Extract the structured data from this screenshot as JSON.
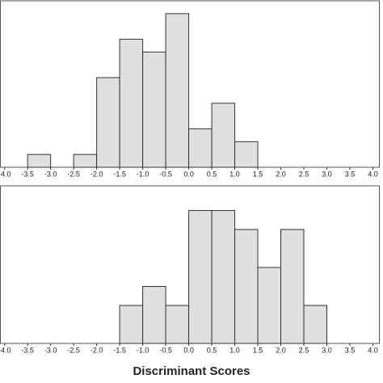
{
  "chart_data": [
    {
      "type": "histogram",
      "bins": [
        -3.5,
        -3.0,
        -2.5,
        -2.0,
        -1.5,
        -1.0,
        -0.5,
        0.0,
        0.5,
        1.0,
        1.5
      ],
      "counts": [
        1,
        0,
        1,
        7,
        10,
        9,
        12,
        3,
        5,
        2
      ],
      "color": "#e0e0e0",
      "xlim": [
        -4.1,
        4.15
      ],
      "ylim": [
        0,
        13
      ],
      "xticks": [
        {
          "value": -4,
          "label": "-4.0"
        },
        {
          "value": -3.5,
          "label": "-3.5"
        },
        {
          "value": -3,
          "label": "-3.0"
        },
        {
          "value": -2.5,
          "label": "-2.5"
        },
        {
          "value": -2,
          "label": "-2.0"
        },
        {
          "value": -1.5,
          "label": "-1.5"
        },
        {
          "value": -1,
          "label": "-1.0"
        },
        {
          "value": -0.5,
          "label": "-0.5"
        },
        {
          "value": 0,
          "label": "0.0"
        },
        {
          "value": 0.5,
          "label": "0.5"
        },
        {
          "value": 1,
          "label": "1.0"
        },
        {
          "value": 1.5,
          "label": "1.5"
        },
        {
          "value": 2,
          "label": "2.0"
        },
        {
          "value": 2.5,
          "label": "2.5"
        },
        {
          "value": 3,
          "label": "3.0"
        },
        {
          "value": 3.5,
          "label": "3.5"
        },
        {
          "value": 4,
          "label": "4.0"
        }
      ]
    },
    {
      "type": "histogram",
      "bins": [
        -1.5,
        -1.0,
        -0.5,
        0.0,
        0.5,
        1.0,
        1.5,
        2.0,
        2.5,
        3.0
      ],
      "counts": [
        2,
        3,
        2,
        7,
        7,
        6,
        4,
        6,
        2
      ],
      "color": "#e0e0e0",
      "xlim": [
        -4.1,
        4.15
      ],
      "ylim": [
        0,
        8.3
      ],
      "xlabel": "Discriminant Scores",
      "xticks": [
        {
          "value": -4,
          "label": "-4.0"
        },
        {
          "value": -3.5,
          "label": "-3.5"
        },
        {
          "value": -3,
          "label": "-3.0"
        },
        {
          "value": -2.5,
          "label": "-2.5"
        },
        {
          "value": -2,
          "label": "-2.0"
        },
        {
          "value": -1.5,
          "label": "-1.5"
        },
        {
          "value": -1,
          "label": "-1.0"
        },
        {
          "value": -0.5,
          "label": "-0.5"
        },
        {
          "value": 0,
          "label": "0.0"
        },
        {
          "value": 0.5,
          "label": "0.5"
        },
        {
          "value": 1,
          "label": "1.0"
        },
        {
          "value": 1.5,
          "label": "1.5"
        },
        {
          "value": 2,
          "label": "2.0"
        },
        {
          "value": 2.5,
          "label": "2.5"
        },
        {
          "value": 3,
          "label": "3.0"
        },
        {
          "value": 3.5,
          "label": "3.5"
        },
        {
          "value": 4,
          "label": "4.0"
        }
      ]
    }
  ]
}
